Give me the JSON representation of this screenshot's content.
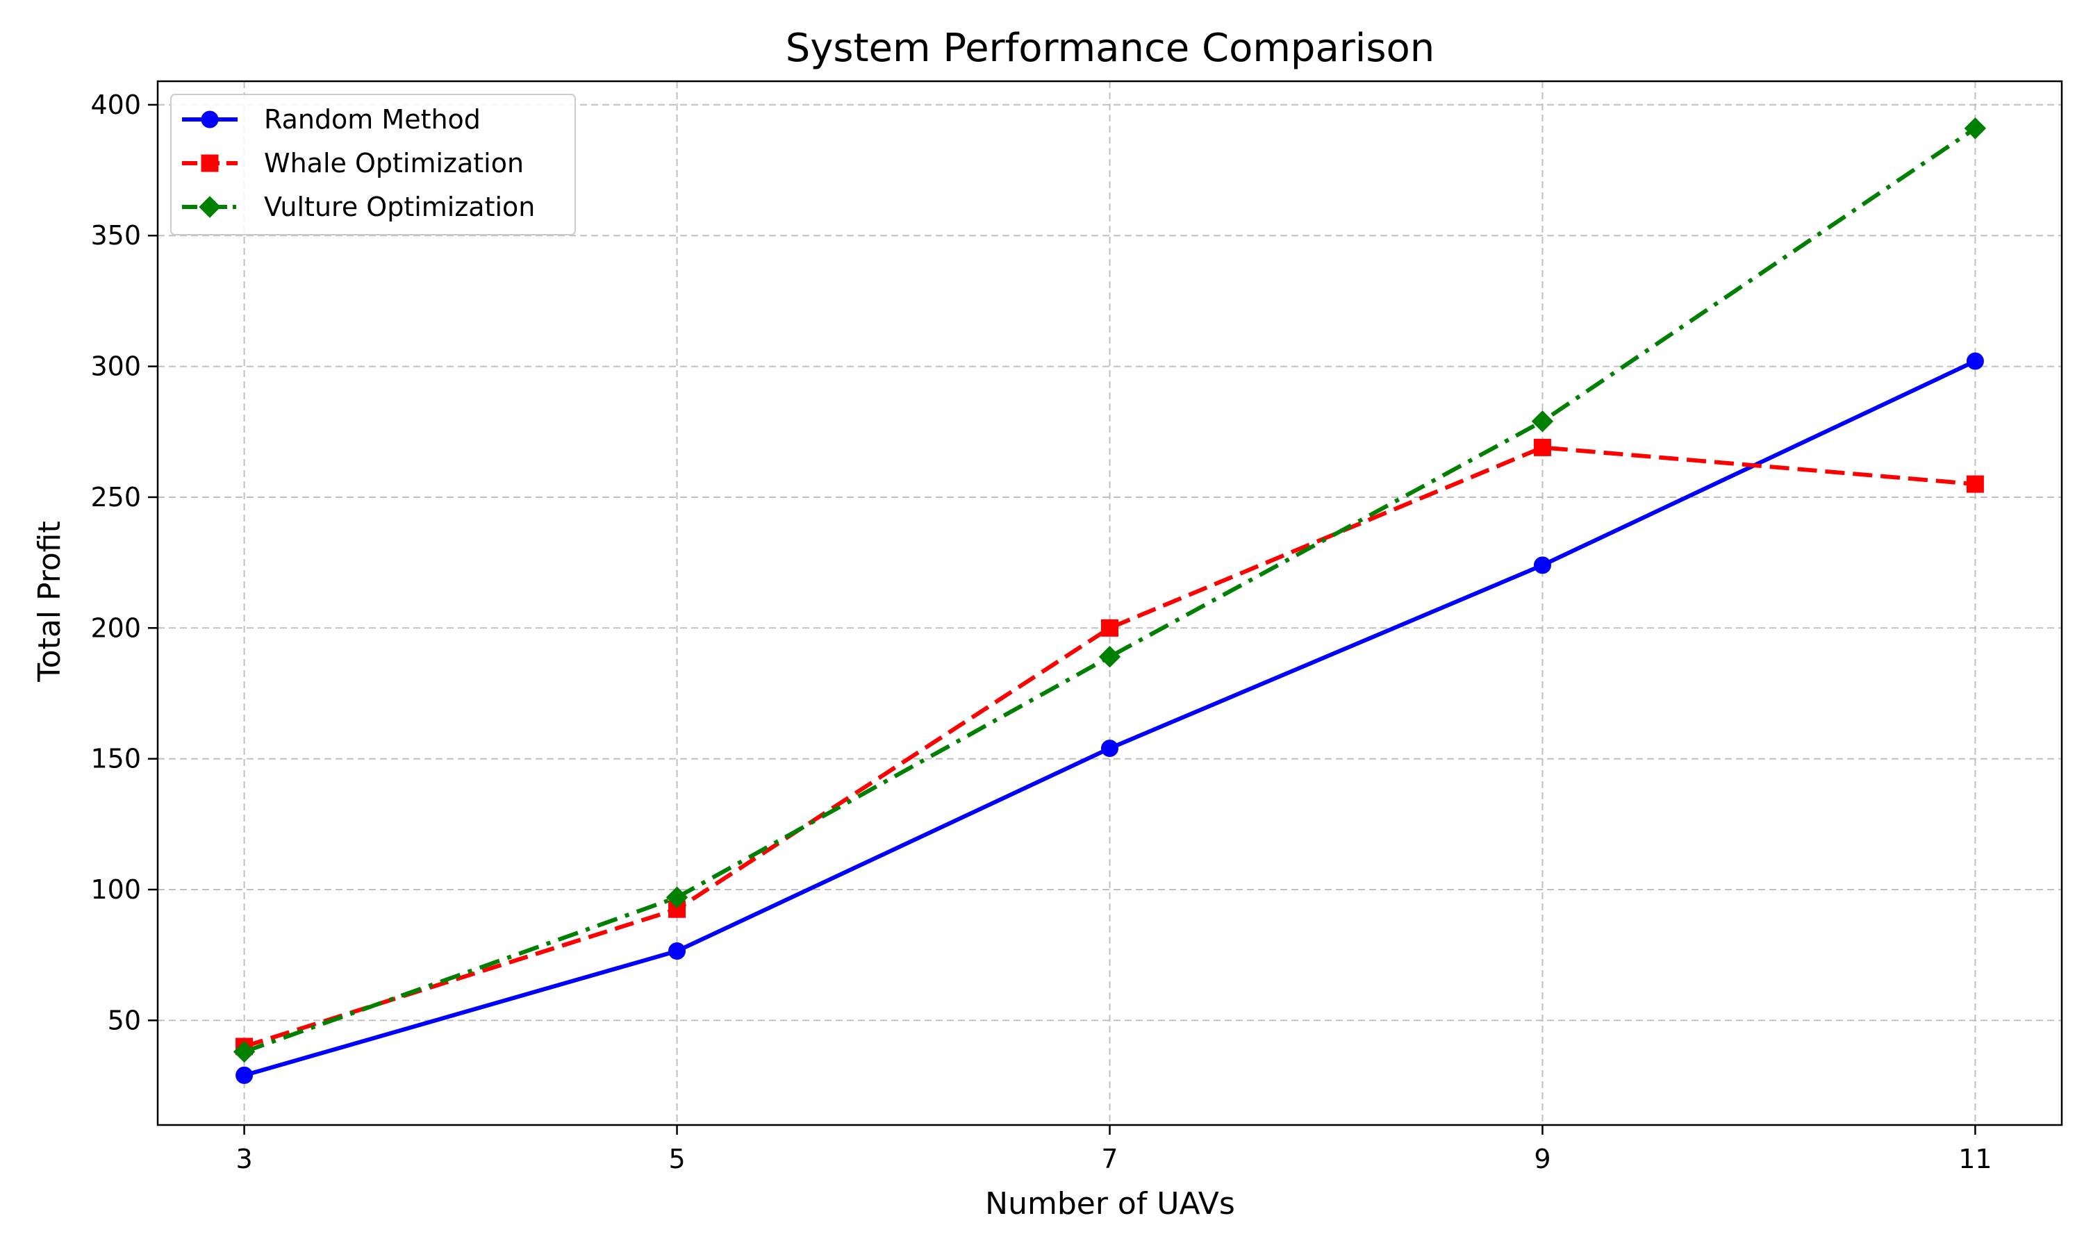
{
  "chart_data": {
    "type": "line",
    "title": "System Performance Comparison",
    "xlabel": "Number of UAVs",
    "ylabel": "Total Profit",
    "x": [
      3,
      5,
      7,
      9,
      11
    ],
    "xticks": [
      3,
      5,
      7,
      9,
      11
    ],
    "yticks": [
      50,
      100,
      150,
      200,
      250,
      300,
      350,
      400
    ],
    "xlim": [
      2.6,
      11.4
    ],
    "ylim": [
      10,
      409
    ],
    "grid": true,
    "grid_style": "dashed",
    "legend_position": "top-left",
    "series": [
      {
        "name": "Random Method",
        "values": [
          29,
          76.5,
          154,
          224,
          302
        ],
        "color": "#0000ff",
        "line_style": "solid",
        "marker": "circle"
      },
      {
        "name": "Whale Optimization",
        "values": [
          40,
          92.5,
          200,
          269,
          255
        ],
        "color": "#ff0000",
        "line_style": "dashed",
        "marker": "square"
      },
      {
        "name": "Vulture Optimization",
        "values": [
          38,
          97,
          189,
          279,
          391
        ],
        "color": "#008000",
        "line_style": "dashdot",
        "marker": "diamond"
      }
    ]
  }
}
